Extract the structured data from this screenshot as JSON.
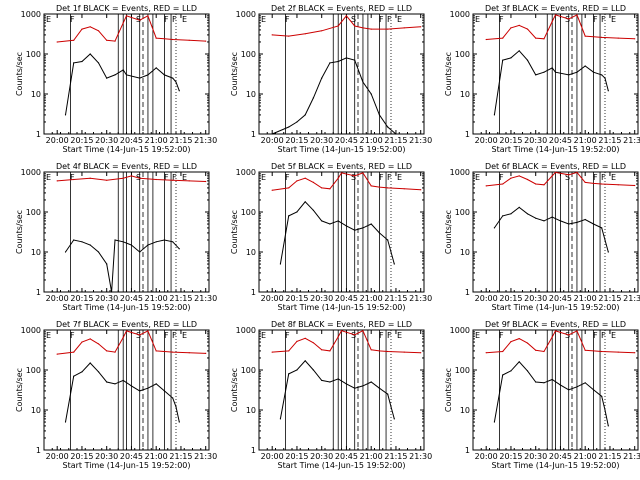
{
  "figure": {
    "xlabel": "Start Time (14-Jun-15 19:52:00)",
    "ylabel": "Counts/sec",
    "x_tick_labels": [
      "20:00",
      "20:15",
      "20:30",
      "20:45",
      "21:00",
      "21:15",
      "21:30"
    ],
    "y_tick_labels": [
      "1",
      "10",
      "100",
      "1000"
    ],
    "markers": [
      "E",
      "F",
      "S",
      "F",
      "F",
      "E"
    ],
    "colors": {
      "events": "#000000",
      "lld": "#cc0000",
      "axis": "#000000",
      "background": "#ffffff"
    }
  },
  "chart_data": [
    {
      "type": "line",
      "title": "Det 1f BLACK = Events, RED = LLD",
      "xlabel": "Start Time (14-Jun-15 19:52:00)",
      "ylabel": "Counts/sec",
      "x_domain": [
        "19:52",
        "21:32"
      ],
      "ylim": [
        1,
        1000
      ],
      "y_scale": "log",
      "series": [
        {
          "name": "Events",
          "x": [
            "20:05",
            "20:10",
            "20:15",
            "20:20",
            "20:25",
            "20:30",
            "20:35",
            "20:40",
            "20:42",
            "20:50",
            "20:55",
            "21:00",
            "21:05",
            "21:10",
            "21:12",
            "21:14"
          ],
          "values": [
            3,
            60,
            65,
            100,
            60,
            25,
            30,
            40,
            30,
            25,
            30,
            45,
            30,
            25,
            20,
            12
          ]
        },
        {
          "name": "LLD",
          "x": [
            "20:00",
            "20:10",
            "20:15",
            "20:20",
            "20:25",
            "20:30",
            "20:35",
            "20:40",
            "20:42",
            "20:50",
            "20:55",
            "21:00",
            "21:05",
            "21:10",
            "21:20",
            "21:30"
          ],
          "values": [
            200,
            220,
            420,
            480,
            380,
            220,
            210,
            600,
            900,
            700,
            900,
            250,
            240,
            230,
            220,
            210
          ]
        }
      ],
      "vlines_solid": [
        "20:08",
        "20:37",
        "20:40",
        "20:42",
        "20:45",
        "20:50",
        "20:55",
        "20:58",
        "21:05",
        "21:09"
      ],
      "vlines_dashed": [
        "20:52"
      ],
      "vlines_dotted": [
        "21:12"
      ]
    },
    {
      "type": "line",
      "title": "Det 2f BLACK = Events, RED = LLD",
      "xlabel": "Start Time (14-Jun-15 19:52:00)",
      "ylabel": "Counts/sec",
      "x_domain": [
        "19:52",
        "21:32"
      ],
      "ylim": [
        1,
        1000
      ],
      "y_scale": "log",
      "series": [
        {
          "name": "Events",
          "x": [
            "20:00",
            "20:10",
            "20:15",
            "20:20",
            "20:25",
            "20:30",
            "20:35",
            "20:40",
            "20:45",
            "20:50",
            "20:55",
            "21:00",
            "21:05",
            "21:10",
            "21:15"
          ],
          "values": [
            1,
            1.5,
            2,
            3,
            8,
            25,
            60,
            65,
            80,
            70,
            20,
            10,
            3,
            1.5,
            1
          ]
        },
        {
          "name": "LLD",
          "x": [
            "20:00",
            "20:10",
            "20:20",
            "20:30",
            "20:40",
            "20:45",
            "20:50",
            "20:55",
            "21:00",
            "21:10",
            "21:20",
            "21:30"
          ],
          "values": [
            300,
            280,
            320,
            380,
            500,
            900,
            500,
            450,
            420,
            420,
            450,
            480
          ]
        }
      ],
      "vlines_solid": [
        "20:08",
        "20:37",
        "20:40",
        "20:42",
        "20:45",
        "20:50",
        "20:55",
        "20:58",
        "21:05",
        "21:09"
      ],
      "vlines_dashed": [
        "20:52"
      ],
      "vlines_dotted": [
        "21:12"
      ]
    },
    {
      "type": "line",
      "title": "Det 3f BLACK = Events, RED = LLD",
      "xlabel": "Start Time (14-Jun-15 19:52:00)",
      "ylabel": "Counts/sec",
      "x_domain": [
        "19:52",
        "21:32"
      ],
      "ylim": [
        1,
        1000
      ],
      "y_scale": "log",
      "series": [
        {
          "name": "Events",
          "x": [
            "20:05",
            "20:10",
            "20:15",
            "20:20",
            "20:25",
            "20:30",
            "20:35",
            "20:40",
            "20:42",
            "20:50",
            "20:55",
            "21:00",
            "21:05",
            "21:10",
            "21:12",
            "21:14"
          ],
          "values": [
            3,
            70,
            80,
            120,
            70,
            30,
            35,
            45,
            35,
            30,
            35,
            50,
            35,
            30,
            25,
            12
          ]
        },
        {
          "name": "LLD",
          "x": [
            "20:00",
            "20:10",
            "20:15",
            "20:20",
            "20:25",
            "20:30",
            "20:35",
            "20:40",
            "20:42",
            "20:50",
            "20:55",
            "21:00",
            "21:05",
            "21:10",
            "21:20",
            "21:30"
          ],
          "values": [
            230,
            250,
            450,
            520,
            420,
            250,
            240,
            650,
            950,
            750,
            950,
            280,
            270,
            260,
            250,
            240
          ]
        }
      ],
      "vlines_solid": [
        "20:08",
        "20:37",
        "20:40",
        "20:42",
        "20:45",
        "20:50",
        "20:55",
        "20:58",
        "21:05",
        "21:09"
      ],
      "vlines_dashed": [
        "20:52"
      ],
      "vlines_dotted": [
        "21:12"
      ]
    },
    {
      "type": "line",
      "title": "Det 4f BLACK = Events, RED = LLD",
      "xlabel": "Start Time (14-Jun-15 19:52:00)",
      "ylabel": "Counts/sec",
      "x_domain": [
        "19:52",
        "21:32"
      ],
      "ylim": [
        1,
        1000
      ],
      "y_scale": "log",
      "series": [
        {
          "name": "Events",
          "x": [
            "20:05",
            "20:10",
            "20:15",
            "20:20",
            "20:25",
            "20:30",
            "20:33",
            "20:35",
            "20:40",
            "20:45",
            "20:50",
            "20:55",
            "21:00",
            "21:05",
            "21:10",
            "21:14"
          ],
          "values": [
            10,
            20,
            18,
            15,
            10,
            5,
            1,
            20,
            18,
            15,
            10,
            15,
            18,
            20,
            18,
            12
          ]
        },
        {
          "name": "LLD",
          "x": [
            "20:00",
            "20:10",
            "20:20",
            "20:30",
            "20:40",
            "20:45",
            "20:50",
            "21:00",
            "21:10",
            "21:20",
            "21:30"
          ],
          "values": [
            600,
            650,
            700,
            620,
            700,
            800,
            700,
            650,
            620,
            600,
            580
          ]
        }
      ],
      "vlines_solid": [
        "20:08",
        "20:37",
        "20:40",
        "20:42",
        "20:45",
        "20:50",
        "20:55",
        "20:58",
        "21:05",
        "21:09"
      ],
      "vlines_dashed": [
        "20:52"
      ],
      "vlines_dotted": [
        "21:12"
      ]
    },
    {
      "type": "line",
      "title": "Det 5f BLACK = Events, RED = LLD",
      "xlabel": "Start Time (14-Jun-15 19:52:00)",
      "ylabel": "Counts/sec",
      "x_domain": [
        "19:52",
        "21:32"
      ],
      "ylim": [
        1,
        1000
      ],
      "y_scale": "log",
      "series": [
        {
          "name": "Events",
          "x": [
            "20:05",
            "20:10",
            "20:15",
            "20:20",
            "20:25",
            "20:30",
            "20:35",
            "20:40",
            "20:45",
            "20:50",
            "20:55",
            "21:00",
            "21:05",
            "21:10",
            "21:12",
            "21:14"
          ],
          "values": [
            5,
            80,
            100,
            180,
            110,
            60,
            50,
            60,
            45,
            35,
            40,
            50,
            30,
            20,
            10,
            5
          ]
        },
        {
          "name": "LLD",
          "x": [
            "20:00",
            "20:10",
            "20:15",
            "20:20",
            "20:25",
            "20:30",
            "20:35",
            "20:40",
            "20:42",
            "20:50",
            "20:55",
            "21:00",
            "21:05",
            "21:10",
            "21:20",
            "21:30"
          ],
          "values": [
            350,
            400,
            600,
            700,
            550,
            400,
            380,
            700,
            950,
            800,
            950,
            450,
            420,
            400,
            380,
            360
          ]
        }
      ],
      "vlines_solid": [
        "20:08",
        "20:37",
        "20:40",
        "20:42",
        "20:45",
        "20:50",
        "20:55",
        "20:58",
        "21:05",
        "21:09"
      ],
      "vlines_dashed": [
        "20:52"
      ],
      "vlines_dotted": [
        "21:12"
      ]
    },
    {
      "type": "line",
      "title": "Det 6f BLACK = Events, RED = LLD",
      "xlabel": "Start Time (14-Jun-15 19:52:00)",
      "ylabel": "Counts/sec",
      "x_domain": [
        "19:52",
        "21:32"
      ],
      "ylim": [
        1,
        1000
      ],
      "y_scale": "log",
      "series": [
        {
          "name": "Events",
          "x": [
            "20:05",
            "20:10",
            "20:15",
            "20:20",
            "20:25",
            "20:30",
            "20:35",
            "20:40",
            "20:45",
            "20:50",
            "20:55",
            "21:00",
            "21:05",
            "21:10",
            "21:12",
            "21:14"
          ],
          "values": [
            40,
            80,
            90,
            130,
            90,
            70,
            60,
            75,
            60,
            50,
            55,
            65,
            50,
            40,
            20,
            10
          ]
        },
        {
          "name": "LLD",
          "x": [
            "20:00",
            "20:10",
            "20:15",
            "20:20",
            "20:25",
            "20:30",
            "20:35",
            "20:40",
            "20:42",
            "20:50",
            "20:55",
            "21:00",
            "21:05",
            "21:10",
            "21:20",
            "21:30"
          ],
          "values": [
            450,
            500,
            700,
            800,
            650,
            500,
            480,
            800,
            980,
            850,
            980,
            550,
            520,
            500,
            480,
            460
          ]
        }
      ],
      "vlines_solid": [
        "20:08",
        "20:37",
        "20:40",
        "20:42",
        "20:45",
        "20:50",
        "20:55",
        "20:58",
        "21:05",
        "21:09"
      ],
      "vlines_dashed": [
        "20:52"
      ],
      "vlines_dotted": [
        "21:12"
      ]
    },
    {
      "type": "line",
      "title": "Det 7f BLACK = Events, RED = LLD",
      "xlabel": "Start Time (14-Jun-15 19:52:00)",
      "ylabel": "Counts/sec",
      "x_domain": [
        "19:52",
        "21:32"
      ],
      "ylim": [
        1,
        1000
      ],
      "y_scale": "log",
      "series": [
        {
          "name": "Events",
          "x": [
            "20:05",
            "20:10",
            "20:15",
            "20:20",
            "20:25",
            "20:30",
            "20:35",
            "20:40",
            "20:45",
            "20:50",
            "20:55",
            "21:00",
            "21:05",
            "21:10",
            "21:12",
            "21:14"
          ],
          "values": [
            5,
            70,
            90,
            150,
            90,
            50,
            45,
            55,
            40,
            30,
            35,
            45,
            30,
            20,
            12,
            5
          ]
        },
        {
          "name": "LLD",
          "x": [
            "20:00",
            "20:10",
            "20:15",
            "20:20",
            "20:25",
            "20:30",
            "20:35",
            "20:40",
            "20:42",
            "20:50",
            "20:55",
            "21:00",
            "21:05",
            "21:10",
            "21:20",
            "21:30"
          ],
          "values": [
            250,
            280,
            500,
            600,
            450,
            300,
            280,
            650,
            950,
            750,
            950,
            300,
            290,
            280,
            270,
            260
          ]
        }
      ],
      "vlines_solid": [
        "20:08",
        "20:37",
        "20:40",
        "20:42",
        "20:45",
        "20:50",
        "20:55",
        "20:58",
        "21:05",
        "21:09"
      ],
      "vlines_dashed": [
        "20:52"
      ],
      "vlines_dotted": [
        "21:12"
      ]
    },
    {
      "type": "line",
      "title": "Det 8f BLACK = Events, RED = LLD",
      "xlabel": "Start Time (14-Jun-15 19:52:00)",
      "ylabel": "Counts/sec",
      "x_domain": [
        "19:52",
        "21:32"
      ],
      "ylim": [
        1,
        1000
      ],
      "y_scale": "log",
      "series": [
        {
          "name": "Events",
          "x": [
            "20:05",
            "20:10",
            "20:15",
            "20:20",
            "20:25",
            "20:30",
            "20:35",
            "20:40",
            "20:45",
            "20:50",
            "20:55",
            "21:00",
            "21:05",
            "21:10",
            "21:12",
            "21:14"
          ],
          "values": [
            6,
            80,
            100,
            170,
            100,
            55,
            50,
            60,
            45,
            35,
            40,
            50,
            35,
            25,
            12,
            6
          ]
        },
        {
          "name": "LLD",
          "x": [
            "20:00",
            "20:10",
            "20:15",
            "20:20",
            "20:25",
            "20:30",
            "20:35",
            "20:40",
            "20:42",
            "20:50",
            "20:55",
            "21:00",
            "21:05",
            "21:10",
            "21:20",
            "21:30"
          ],
          "values": [
            280,
            300,
            520,
            620,
            480,
            320,
            300,
            680,
            960,
            760,
            960,
            320,
            300,
            290,
            280,
            270
          ]
        }
      ],
      "vlines_solid": [
        "20:08",
        "20:37",
        "20:40",
        "20:42",
        "20:45",
        "20:50",
        "20:55",
        "20:58",
        "21:05",
        "21:09"
      ],
      "vlines_dashed": [
        "20:52"
      ],
      "vlines_dotted": [
        "21:12"
      ]
    },
    {
      "type": "line",
      "title": "Det 9f BLACK = Events, RED = LLD",
      "xlabel": "Start Time (14-Jun-15 19:52:00)",
      "ylabel": "Counts/sec",
      "x_domain": [
        "19:52",
        "21:32"
      ],
      "ylim": [
        1,
        1000
      ],
      "y_scale": "log",
      "series": [
        {
          "name": "Events",
          "x": [
            "20:05",
            "20:10",
            "20:15",
            "20:20",
            "20:25",
            "20:30",
            "20:35",
            "20:40",
            "20:45",
            "20:50",
            "20:55",
            "21:00",
            "21:05",
            "21:10",
            "21:12",
            "21:14"
          ],
          "values": [
            5,
            75,
            95,
            160,
            95,
            50,
            48,
            58,
            42,
            32,
            38,
            48,
            32,
            22,
            10,
            4
          ]
        },
        {
          "name": "LLD",
          "x": [
            "20:00",
            "20:10",
            "20:15",
            "20:20",
            "20:25",
            "20:30",
            "20:35",
            "20:40",
            "20:42",
            "20:50",
            "20:55",
            "21:00",
            "21:05",
            "21:10",
            "21:20",
            "21:30"
          ],
          "values": [
            270,
            290,
            510,
            610,
            470,
            310,
            290,
            670,
            950,
            750,
            950,
            310,
            300,
            290,
            280,
            270
          ]
        }
      ],
      "vlines_solid": [
        "20:08",
        "20:37",
        "20:40",
        "20:42",
        "20:45",
        "20:50",
        "20:55",
        "20:58",
        "21:05",
        "21:09"
      ],
      "vlines_dashed": [
        "20:52"
      ],
      "vlines_dotted": [
        "21:12"
      ]
    }
  ]
}
